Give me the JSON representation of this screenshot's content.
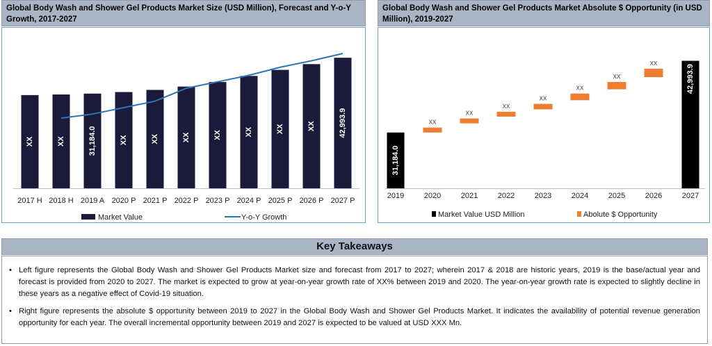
{
  "left_chart": {
    "title": "Global Body Wash and Shower Gel Products Market Size (USD Million), Forecast and Y-o-Y Growth, 2017-2027",
    "legend": [
      "Market Value",
      "Y-o-Y Growth"
    ],
    "colors": {
      "bar": "#1b1a3a",
      "line": "#2e75b6"
    }
  },
  "right_chart": {
    "title": "Global Body Wash and Shower Gel Products Market Absolute $ Opportunity (in USD Million), 2019-2027",
    "legend": [
      "Market Value USD Million",
      "Abolute $ Opportunity"
    ],
    "colors": {
      "total": "#000000",
      "step": "#ed7d31"
    }
  },
  "chart_data": [
    {
      "type": "bar",
      "title": "Global Body Wash and Shower Gel Products Market Size (USD Million), Forecast and Y-o-Y Growth, 2017-2027",
      "categories": [
        "2017 H",
        "2018 H",
        "2019 A",
        "2020 P",
        "2021 P",
        "2022 P",
        "2023 P",
        "2024 P",
        "2025 P",
        "2026 P",
        "2027 P"
      ],
      "series": [
        {
          "name": "Market Value",
          "values": [
            30700,
            30900,
            31184.0,
            31700,
            32400,
            33500,
            35000,
            37000,
            39000,
            40900,
            42993.9
          ]
        },
        {
          "name": "Y-o-Y Growth",
          "type": "line",
          "values": [
            null,
            2.5,
            3.0,
            3.8,
            4.6,
            6.2,
            7.0,
            7.8,
            8.8,
            9.6,
            10.5
          ]
        }
      ],
      "labels": [
        "XX",
        "XX",
        "31,184.0",
        "XX",
        "XX",
        "XX",
        "XX",
        "XX",
        "XX",
        "XX",
        "42,993.9"
      ],
      "ylim": [
        0,
        46000
      ]
    },
    {
      "type": "waterfall",
      "title": "Global Body Wash and Shower Gel Products Market Absolute $ Opportunity (in USD Million), 2019-2027",
      "categories": [
        "2019",
        "2020",
        "2021",
        "2022",
        "2023",
        "2024",
        "2025",
        "2026",
        "2027"
      ],
      "start": 31184.0,
      "end": 42993.9,
      "steps": [
        {
          "from": 31184.0,
          "to": 32000
        },
        {
          "from": 32700,
          "to": 33500
        },
        {
          "from": 33800,
          "to": 34600
        },
        {
          "from": 35000,
          "to": 35900
        },
        {
          "from": 36500,
          "to": 37600
        },
        {
          "from": 38300,
          "to": 39500
        },
        {
          "from": 40300,
          "to": 41700
        }
      ],
      "total_labels": [
        "31,184.0",
        "42,993.9"
      ],
      "step_labels": [
        "XX",
        "XX",
        "XX",
        "XX",
        "XX",
        "XX",
        "XX"
      ],
      "ylim": [
        22000,
        45000
      ]
    }
  ],
  "key_takeaways": {
    "title": "Key Takeaways",
    "bullets": [
      "Left figure represents the Global Body Wash and Shower Gel Products Market size and forecast from 2017 to 2027; wherein 2017 & 2018 are historic years, 2019 is the base/actual year and forecast is provided from 2020 to 2027. The market is expected to grow at year-on-year growth rate of XX% between 2019 and 2020. The year-on-year growth rate is expected to slightly decline in these years as a negative effect of Covid-19 situation.",
      "Right figure represents the absolute $ opportunity between 2019 to 2027 in the Global Body Wash and Shower Gel Products Market. It indicates the availability of potential revenue generation opportunity for each year. The overall incremental opportunity between 2019 and 2027 is expected to be valued at USD XXX Mn."
    ],
    "bullet_symbol": "•"
  }
}
